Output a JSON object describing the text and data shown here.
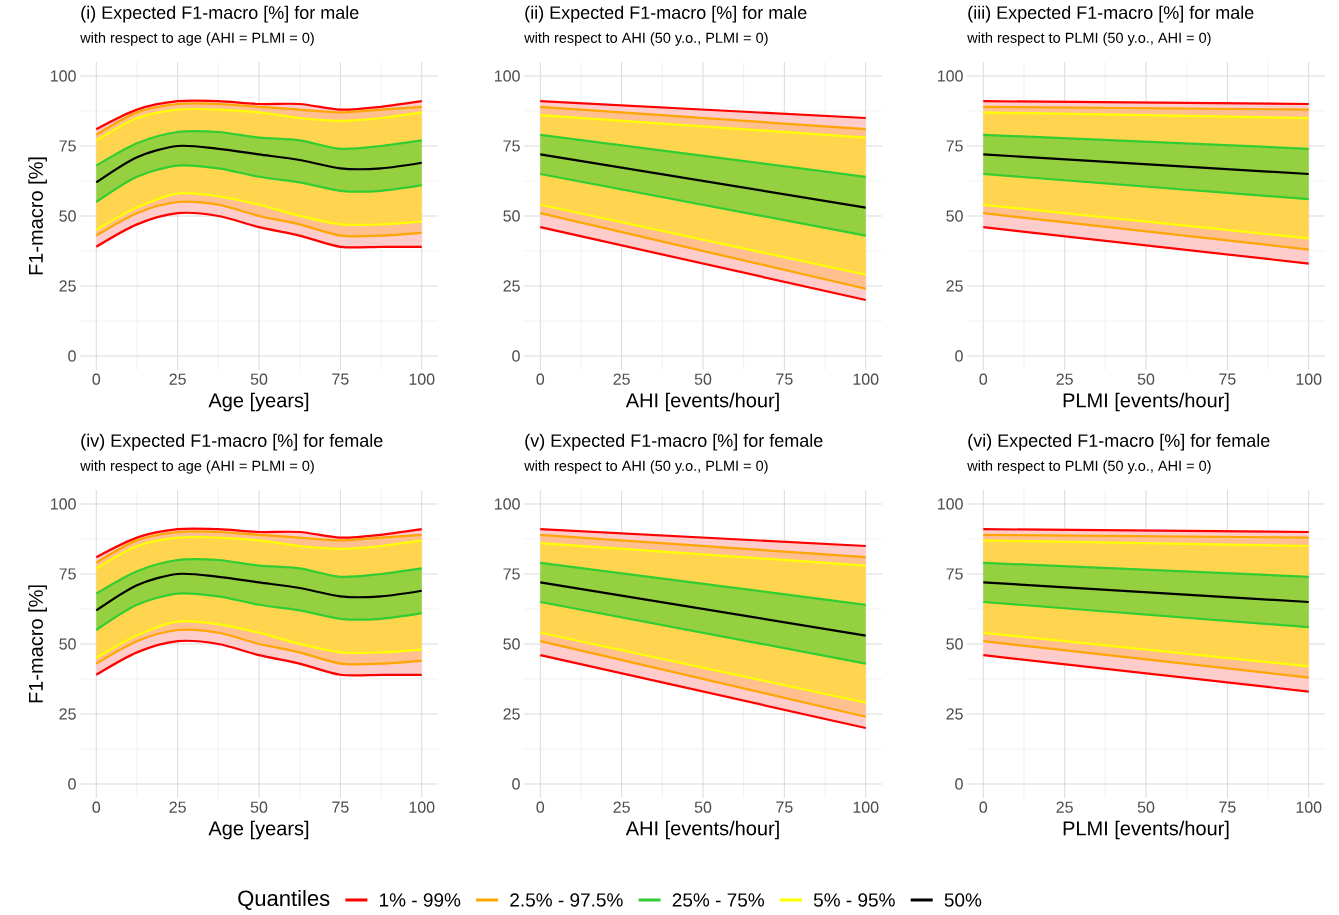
{
  "chart_data": [
    {
      "type": "line",
      "title": "(i) Expected F1-macro [%] for male",
      "subtitle": "with respect to age (AHI = PLMI = 0)",
      "xlabel": "Age [years]",
      "ylabel": "F1-macro [%]",
      "xlim": [
        -5,
        105
      ],
      "ylim": [
        -5,
        105
      ],
      "xticks": [
        0,
        25,
        50,
        75,
        100
      ],
      "yticks": [
        0,
        25,
        50,
        75,
        100
      ],
      "grid": true,
      "legend": "bottom",
      "legend_title": "Quantiles",
      "x": [
        0,
        12.5,
        25,
        37.5,
        50,
        62.5,
        75,
        87.5,
        100
      ],
      "series": [
        {
          "color": "#ffcccc",
          "values": [
            null,
            null,
            null,
            null,
            null,
            null,
            null,
            null,
            null
          ],
          "lower": [
            39,
            47,
            51,
            50,
            46,
            43,
            39,
            39,
            39
          ],
          "upper": [
            43,
            51,
            55,
            54,
            50,
            47,
            43,
            43,
            44
          ]
        },
        {
          "color": "#ffcccc",
          "values": [
            null,
            null,
            null,
            null,
            null,
            null,
            null,
            null,
            null
          ],
          "lower": [
            79,
            87,
            90,
            90,
            89,
            88,
            87,
            88,
            89
          ],
          "upper": [
            81,
            88,
            91,
            91,
            90,
            90,
            88,
            89,
            91
          ]
        },
        {
          "color": "#ffbf8f",
          "values": [
            null,
            null,
            null,
            null,
            null,
            null,
            null,
            null,
            null
          ],
          "lower": [
            43,
            51,
            55,
            54,
            50,
            47,
            43,
            43,
            44
          ],
          "upper": [
            45,
            53,
            58,
            57,
            54,
            50,
            47,
            47,
            48
          ]
        },
        {
          "color": "#ffbf8f",
          "values": [
            null,
            null,
            null,
            null,
            null,
            null,
            null,
            null,
            null
          ],
          "lower": [
            77,
            85,
            88,
            88,
            87,
            85,
            84,
            85,
            87
          ],
          "upper": [
            79,
            87,
            90,
            90,
            89,
            88,
            87,
            88,
            89
          ]
        },
        {
          "color": "#ffd54f",
          "values": [
            null,
            null,
            null,
            null,
            null,
            null,
            null,
            null,
            null
          ],
          "lower": [
            45,
            53,
            58,
            57,
            54,
            50,
            47,
            47,
            48
          ],
          "upper": [
            55,
            64,
            68,
            67,
            64,
            62,
            59,
            59,
            61
          ]
        },
        {
          "color": "#ffd54f",
          "values": [
            null,
            null,
            null,
            null,
            null,
            null,
            null,
            null,
            null
          ],
          "lower": [
            68,
            76,
            80,
            80,
            78,
            77,
            74,
            75,
            77
          ],
          "upper": [
            77,
            85,
            88,
            88,
            87,
            85,
            84,
            85,
            87
          ]
        },
        {
          "color": "#94d040",
          "values": [
            null,
            null,
            null,
            null,
            null,
            null,
            null,
            null,
            null
          ],
          "lower": [
            55,
            64,
            68,
            67,
            64,
            62,
            59,
            59,
            61
          ],
          "upper": [
            68,
            76,
            80,
            80,
            78,
            77,
            74,
            75,
            77
          ]
        },
        {
          "name": "1% - 99%",
          "color": "#ff0000",
          "values": [
            39,
            47,
            51,
            50,
            46,
            43,
            39,
            39,
            39
          ]
        },
        {
          "color": "#ff0000",
          "values": [
            81,
            88,
            91,
            91,
            90,
            90,
            88,
            89,
            91
          ]
        },
        {
          "name": "2.5% - 97.5%",
          "color": "#ffa500",
          "values": [
            43,
            51,
            55,
            54,
            50,
            47,
            43,
            43,
            44
          ]
        },
        {
          "color": "#ffa500",
          "values": [
            79,
            87,
            90,
            90,
            89,
            88,
            87,
            88,
            89
          ]
        },
        {
          "name": "25% - 75%",
          "color": "#32cd32",
          "values": [
            55,
            64,
            68,
            67,
            64,
            62,
            59,
            59,
            61
          ]
        },
        {
          "color": "#32cd32",
          "values": [
            68,
            76,
            80,
            80,
            78,
            77,
            74,
            75,
            77
          ]
        },
        {
          "name": "5% - 95%",
          "color": "#ffff00",
          "values": [
            45,
            53,
            58,
            57,
            54,
            50,
            47,
            47,
            48
          ]
        },
        {
          "color": "#ffff00",
          "values": [
            77,
            85,
            88,
            88,
            87,
            85,
            84,
            85,
            87
          ]
        },
        {
          "name": "50%",
          "color": "#000000",
          "values": [
            62,
            71,
            75,
            74,
            72,
            70,
            67,
            67,
            69
          ]
        }
      ]
    },
    {
      "type": "line",
      "title": "(ii) Expected F1-macro [%] for male",
      "subtitle": "with respect to AHI (50 y.o., PLMI = 0)",
      "xlabel": "AHI [events/hour]",
      "xlim": [
        -5,
        105
      ],
      "ylim": [
        -5,
        105
      ],
      "xticks": [
        0,
        25,
        50,
        75,
        100
      ],
      "yticks": [
        0,
        25,
        50,
        75,
        100
      ],
      "grid": true,
      "x": [
        0,
        100
      ],
      "series": [
        {
          "color": "#ffcccc",
          "values": [
            null,
            null
          ],
          "lower": [
            46,
            20
          ],
          "upper": [
            51,
            24
          ]
        },
        {
          "color": "#ffcccc",
          "values": [
            null,
            null
          ],
          "lower": [
            89,
            81
          ],
          "upper": [
            91,
            85
          ]
        },
        {
          "color": "#ffbf8f",
          "values": [
            null,
            null
          ],
          "lower": [
            51,
            24
          ],
          "upper": [
            54,
            29
          ]
        },
        {
          "color": "#ffbf8f",
          "values": [
            null,
            null
          ],
          "lower": [
            86,
            78
          ],
          "upper": [
            89,
            81
          ]
        },
        {
          "color": "#ffd54f",
          "values": [
            null,
            null
          ],
          "lower": [
            54,
            29
          ],
          "upper": [
            65,
            43
          ]
        },
        {
          "color": "#ffd54f",
          "values": [
            null,
            null
          ],
          "lower": [
            79,
            64
          ],
          "upper": [
            86,
            78
          ]
        },
        {
          "color": "#94d040",
          "values": [
            null,
            null
          ],
          "lower": [
            65,
            43
          ],
          "upper": [
            79,
            64
          ]
        },
        {
          "color": "#ff0000",
          "values": [
            46,
            20
          ]
        },
        {
          "color": "#ff0000",
          "values": [
            91,
            85
          ]
        },
        {
          "color": "#ffa500",
          "values": [
            51,
            24
          ]
        },
        {
          "color": "#ffa500",
          "values": [
            89,
            81
          ]
        },
        {
          "color": "#32cd32",
          "values": [
            65,
            43
          ]
        },
        {
          "color": "#32cd32",
          "values": [
            79,
            64
          ]
        },
        {
          "color": "#ffff00",
          "values": [
            54,
            29
          ]
        },
        {
          "color": "#ffff00",
          "values": [
            86,
            78
          ]
        },
        {
          "color": "#000000",
          "values": [
            72,
            53
          ]
        }
      ]
    },
    {
      "type": "line",
      "title": "(iii) Expected F1-macro [%] for male",
      "subtitle": "with respect to PLMI (50 y.o., AHI = 0)",
      "xlabel": "PLMI [events/hour]",
      "xlim": [
        -5,
        105
      ],
      "ylim": [
        -5,
        105
      ],
      "xticks": [
        0,
        25,
        50,
        75,
        100
      ],
      "yticks": [
        0,
        25,
        50,
        75,
        100
      ],
      "grid": true,
      "x": [
        0,
        100
      ],
      "series": [
        {
          "color": "#ffcccc",
          "values": [
            null,
            null
          ],
          "lower": [
            46,
            33
          ],
          "upper": [
            51,
            38
          ]
        },
        {
          "color": "#ffcccc",
          "values": [
            null,
            null
          ],
          "lower": [
            89,
            88
          ],
          "upper": [
            91,
            90
          ]
        },
        {
          "color": "#ffbf8f",
          "values": [
            null,
            null
          ],
          "lower": [
            51,
            38
          ],
          "upper": [
            54,
            42
          ]
        },
        {
          "color": "#ffbf8f",
          "values": [
            null,
            null
          ],
          "lower": [
            87,
            85
          ],
          "upper": [
            89,
            88
          ]
        },
        {
          "color": "#ffd54f",
          "values": [
            null,
            null
          ],
          "lower": [
            54,
            42
          ],
          "upper": [
            65,
            56
          ]
        },
        {
          "color": "#ffd54f",
          "values": [
            null,
            null
          ],
          "lower": [
            79,
            74
          ],
          "upper": [
            87,
            85
          ]
        },
        {
          "color": "#94d040",
          "values": [
            null,
            null
          ],
          "lower": [
            65,
            56
          ],
          "upper": [
            79,
            74
          ]
        },
        {
          "color": "#ff0000",
          "values": [
            46,
            33
          ]
        },
        {
          "color": "#ff0000",
          "values": [
            91,
            90
          ]
        },
        {
          "color": "#ffa500",
          "values": [
            51,
            38
          ]
        },
        {
          "color": "#ffa500",
          "values": [
            89,
            88
          ]
        },
        {
          "color": "#32cd32",
          "values": [
            65,
            56
          ]
        },
        {
          "color": "#32cd32",
          "values": [
            79,
            74
          ]
        },
        {
          "color": "#ffff00",
          "values": [
            54,
            42
          ]
        },
        {
          "color": "#ffff00",
          "values": [
            87,
            85
          ]
        },
        {
          "color": "#000000",
          "values": [
            72,
            65
          ]
        }
      ]
    },
    {
      "type": "line",
      "title": "(iv) Expected F1-macro [%] for female",
      "subtitle": "with respect to age (AHI = PLMI = 0)",
      "xlabel": "Age [years]",
      "ylabel": "F1-macro [%]",
      "xlim": [
        -5,
        105
      ],
      "ylim": [
        -5,
        105
      ],
      "xticks": [
        0,
        25,
        50,
        75,
        100
      ],
      "yticks": [
        0,
        25,
        50,
        75,
        100
      ],
      "grid": true,
      "x": [
        0,
        12.5,
        25,
        37.5,
        50,
        62.5,
        75,
        87.5,
        100
      ],
      "series": [
        {
          "color": "#ffcccc",
          "values": [
            null,
            null,
            null,
            null,
            null,
            null,
            null,
            null,
            null
          ],
          "lower": [
            39,
            47,
            51,
            50,
            46,
            43,
            39,
            39,
            39
          ],
          "upper": [
            43,
            51,
            55,
            54,
            50,
            47,
            43,
            43,
            44
          ]
        },
        {
          "color": "#ffcccc",
          "values": [
            null,
            null,
            null,
            null,
            null,
            null,
            null,
            null,
            null
          ],
          "lower": [
            79,
            87,
            90,
            90,
            89,
            88,
            87,
            88,
            89
          ],
          "upper": [
            81,
            88,
            91,
            91,
            90,
            90,
            88,
            89,
            91
          ]
        },
        {
          "color": "#ffbf8f",
          "values": [
            null,
            null,
            null,
            null,
            null,
            null,
            null,
            null,
            null
          ],
          "lower": [
            43,
            51,
            55,
            54,
            50,
            47,
            43,
            43,
            44
          ],
          "upper": [
            45,
            53,
            58,
            57,
            54,
            50,
            47,
            47,
            48
          ]
        },
        {
          "color": "#ffbf8f",
          "values": [
            null,
            null,
            null,
            null,
            null,
            null,
            null,
            null,
            null
          ],
          "lower": [
            77,
            85,
            88,
            88,
            87,
            85,
            84,
            85,
            87
          ],
          "upper": [
            79,
            87,
            90,
            90,
            89,
            88,
            87,
            88,
            89
          ]
        },
        {
          "color": "#ffd54f",
          "values": [
            null,
            null,
            null,
            null,
            null,
            null,
            null,
            null,
            null
          ],
          "lower": [
            45,
            53,
            58,
            57,
            54,
            50,
            47,
            47,
            48
          ],
          "upper": [
            55,
            64,
            68,
            67,
            64,
            62,
            59,
            59,
            61
          ]
        },
        {
          "color": "#ffd54f",
          "values": [
            null,
            null,
            null,
            null,
            null,
            null,
            null,
            null,
            null
          ],
          "lower": [
            68,
            76,
            80,
            80,
            78,
            77,
            74,
            75,
            77
          ],
          "upper": [
            77,
            85,
            88,
            88,
            87,
            85,
            84,
            85,
            87
          ]
        },
        {
          "color": "#94d040",
          "values": [
            null,
            null,
            null,
            null,
            null,
            null,
            null,
            null,
            null
          ],
          "lower": [
            55,
            64,
            68,
            67,
            64,
            62,
            59,
            59,
            61
          ],
          "upper": [
            68,
            76,
            80,
            80,
            78,
            77,
            74,
            75,
            77
          ]
        },
        {
          "color": "#ff0000",
          "values": [
            39,
            47,
            51,
            50,
            46,
            43,
            39,
            39,
            39
          ]
        },
        {
          "color": "#ff0000",
          "values": [
            81,
            88,
            91,
            91,
            90,
            90,
            88,
            89,
            91
          ]
        },
        {
          "color": "#ffa500",
          "values": [
            43,
            51,
            55,
            54,
            50,
            47,
            43,
            43,
            44
          ]
        },
        {
          "color": "#ffa500",
          "values": [
            79,
            87,
            90,
            90,
            89,
            88,
            87,
            88,
            89
          ]
        },
        {
          "color": "#32cd32",
          "values": [
            55,
            64,
            68,
            67,
            64,
            62,
            59,
            59,
            61
          ]
        },
        {
          "color": "#32cd32",
          "values": [
            68,
            76,
            80,
            80,
            78,
            77,
            74,
            75,
            77
          ]
        },
        {
          "color": "#ffff00",
          "values": [
            45,
            53,
            58,
            57,
            54,
            50,
            47,
            47,
            48
          ]
        },
        {
          "color": "#ffff00",
          "values": [
            77,
            85,
            88,
            88,
            87,
            85,
            84,
            85,
            87
          ]
        },
        {
          "color": "#000000",
          "values": [
            62,
            71,
            75,
            74,
            72,
            70,
            67,
            67,
            69
          ]
        }
      ]
    },
    {
      "type": "line",
      "title": "(v) Expected F1-macro [%] for female",
      "subtitle": "with respect to AHI (50 y.o., PLMI = 0)",
      "xlabel": "AHI [events/hour]",
      "xlim": [
        -5,
        105
      ],
      "ylim": [
        -5,
        105
      ],
      "xticks": [
        0,
        25,
        50,
        75,
        100
      ],
      "yticks": [
        0,
        25,
        50,
        75,
        100
      ],
      "grid": true,
      "x": [
        0,
        100
      ],
      "series": [
        {
          "color": "#ffcccc",
          "values": [
            null,
            null
          ],
          "lower": [
            46,
            20
          ],
          "upper": [
            51,
            24
          ]
        },
        {
          "color": "#ffcccc",
          "values": [
            null,
            null
          ],
          "lower": [
            89,
            81
          ],
          "upper": [
            91,
            85
          ]
        },
        {
          "color": "#ffbf8f",
          "values": [
            null,
            null
          ],
          "lower": [
            51,
            24
          ],
          "upper": [
            54,
            29
          ]
        },
        {
          "color": "#ffbf8f",
          "values": [
            null,
            null
          ],
          "lower": [
            86,
            78
          ],
          "upper": [
            89,
            81
          ]
        },
        {
          "color": "#ffd54f",
          "values": [
            null,
            null
          ],
          "lower": [
            54,
            29
          ],
          "upper": [
            65,
            43
          ]
        },
        {
          "color": "#ffd54f",
          "values": [
            null,
            null
          ],
          "lower": [
            79,
            64
          ],
          "upper": [
            86,
            78
          ]
        },
        {
          "color": "#94d040",
          "values": [
            null,
            null
          ],
          "lower": [
            65,
            43
          ],
          "upper": [
            79,
            64
          ]
        },
        {
          "color": "#ff0000",
          "values": [
            46,
            20
          ]
        },
        {
          "color": "#ff0000",
          "values": [
            91,
            85
          ]
        },
        {
          "color": "#ffa500",
          "values": [
            51,
            24
          ]
        },
        {
          "color": "#ffa500",
          "values": [
            89,
            81
          ]
        },
        {
          "color": "#32cd32",
          "values": [
            65,
            43
          ]
        },
        {
          "color": "#32cd32",
          "values": [
            79,
            64
          ]
        },
        {
          "color": "#ffff00",
          "values": [
            54,
            29
          ]
        },
        {
          "color": "#ffff00",
          "values": [
            86,
            78
          ]
        },
        {
          "color": "#000000",
          "values": [
            72,
            53
          ]
        }
      ]
    },
    {
      "type": "line",
      "title": "(vi) Expected F1-macro [%] for female",
      "subtitle": "with respect to PLMI (50 y.o., AHI = 0)",
      "xlabel": "PLMI [events/hour]",
      "xlim": [
        -5,
        105
      ],
      "ylim": [
        -5,
        105
      ],
      "xticks": [
        0,
        25,
        50,
        75,
        100
      ],
      "yticks": [
        0,
        25,
        50,
        75,
        100
      ],
      "grid": true,
      "x": [
        0,
        100
      ],
      "series": [
        {
          "color": "#ffcccc",
          "values": [
            null,
            null
          ],
          "lower": [
            46,
            33
          ],
          "upper": [
            51,
            38
          ]
        },
        {
          "color": "#ffcccc",
          "values": [
            null,
            null
          ],
          "lower": [
            89,
            88
          ],
          "upper": [
            91,
            90
          ]
        },
        {
          "color": "#ffbf8f",
          "values": [
            null,
            null
          ],
          "lower": [
            51,
            38
          ],
          "upper": [
            54,
            42
          ]
        },
        {
          "color": "#ffbf8f",
          "values": [
            null,
            null
          ],
          "lower": [
            87,
            85
          ],
          "upper": [
            89,
            88
          ]
        },
        {
          "color": "#ffd54f",
          "values": [
            null,
            null
          ],
          "lower": [
            54,
            42
          ],
          "upper": [
            65,
            56
          ]
        },
        {
          "color": "#ffd54f",
          "values": [
            null,
            null
          ],
          "lower": [
            79,
            74
          ],
          "upper": [
            87,
            85
          ]
        },
        {
          "color": "#94d040",
          "values": [
            null,
            null
          ],
          "lower": [
            65,
            56
          ],
          "upper": [
            79,
            74
          ]
        },
        {
          "color": "#ff0000",
          "values": [
            46,
            33
          ]
        },
        {
          "color": "#ff0000",
          "values": [
            91,
            90
          ]
        },
        {
          "color": "#ffa500",
          "values": [
            51,
            38
          ]
        },
        {
          "color": "#ffa500",
          "values": [
            89,
            88
          ]
        },
        {
          "color": "#32cd32",
          "values": [
            65,
            56
          ]
        },
        {
          "color": "#32cd32",
          "values": [
            79,
            74
          ]
        },
        {
          "color": "#ffff00",
          "values": [
            54,
            42
          ]
        },
        {
          "color": "#ffff00",
          "values": [
            87,
            85
          ]
        },
        {
          "color": "#000000",
          "values": [
            72,
            65
          ]
        }
      ]
    }
  ]
}
